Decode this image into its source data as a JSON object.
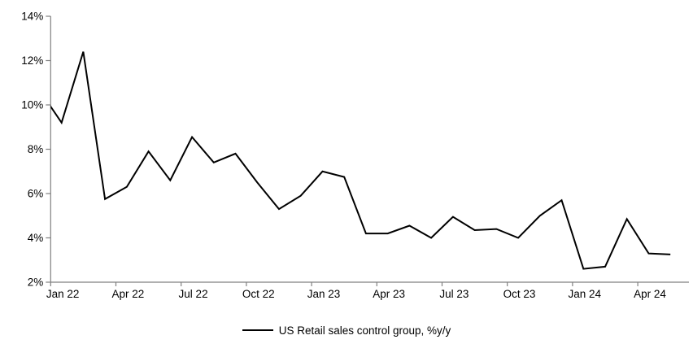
{
  "chart_data": {
    "type": "line",
    "title": "",
    "xlabel": "",
    "ylabel": "",
    "categories": [
      "Dec 21",
      "Jan 22",
      "Feb 22",
      "Mar 22",
      "Apr 22",
      "May 22",
      "Jun 22",
      "Jul 22",
      "Aug 22",
      "Sep 22",
      "Oct 22",
      "Nov 22",
      "Dec 22",
      "Jan 23",
      "Feb 23",
      "Mar 23",
      "Apr 23",
      "May 23",
      "Jun 23",
      "Jul 23",
      "Aug 23",
      "Sep 23",
      "Oct 23",
      "Nov 23",
      "Dec 23",
      "Jan 24",
      "Feb 24",
      "Mar 24",
      "Apr 24",
      "May 24"
    ],
    "series": [
      {
        "name": "US Retail sales control group, %y/y",
        "color": "#000000",
        "values": [
          10.65,
          9.2,
          12.4,
          5.75,
          6.3,
          7.9,
          6.6,
          8.55,
          7.4,
          7.8,
          6.5,
          5.3,
          5.9,
          7.0,
          6.75,
          4.2,
          4.2,
          4.55,
          4.0,
          4.95,
          4.35,
          4.4,
          4.0,
          5.0,
          5.7,
          2.6,
          2.7,
          4.85,
          3.3,
          3.25
        ]
      }
    ],
    "ylim": [
      2,
      14
    ],
    "y_tick_values": [
      2,
      4,
      6,
      8,
      10,
      12,
      14
    ],
    "y_tick_suffix": "%",
    "x_tick_labels": [
      "Jan 22",
      "Apr 22",
      "Jul 22",
      "Oct 22",
      "Jan 23",
      "Apr 23",
      "Jul 23",
      "Oct 23",
      "Jan 24",
      "Apr 24"
    ],
    "x_axis_note": "monthly points; leading Dec 21 point lies left of the y-axis so its segment is clipped at the axis",
    "grid": false,
    "legend_position": "bottom-center",
    "axis_color": "#808080",
    "background": "#ffffff"
  }
}
